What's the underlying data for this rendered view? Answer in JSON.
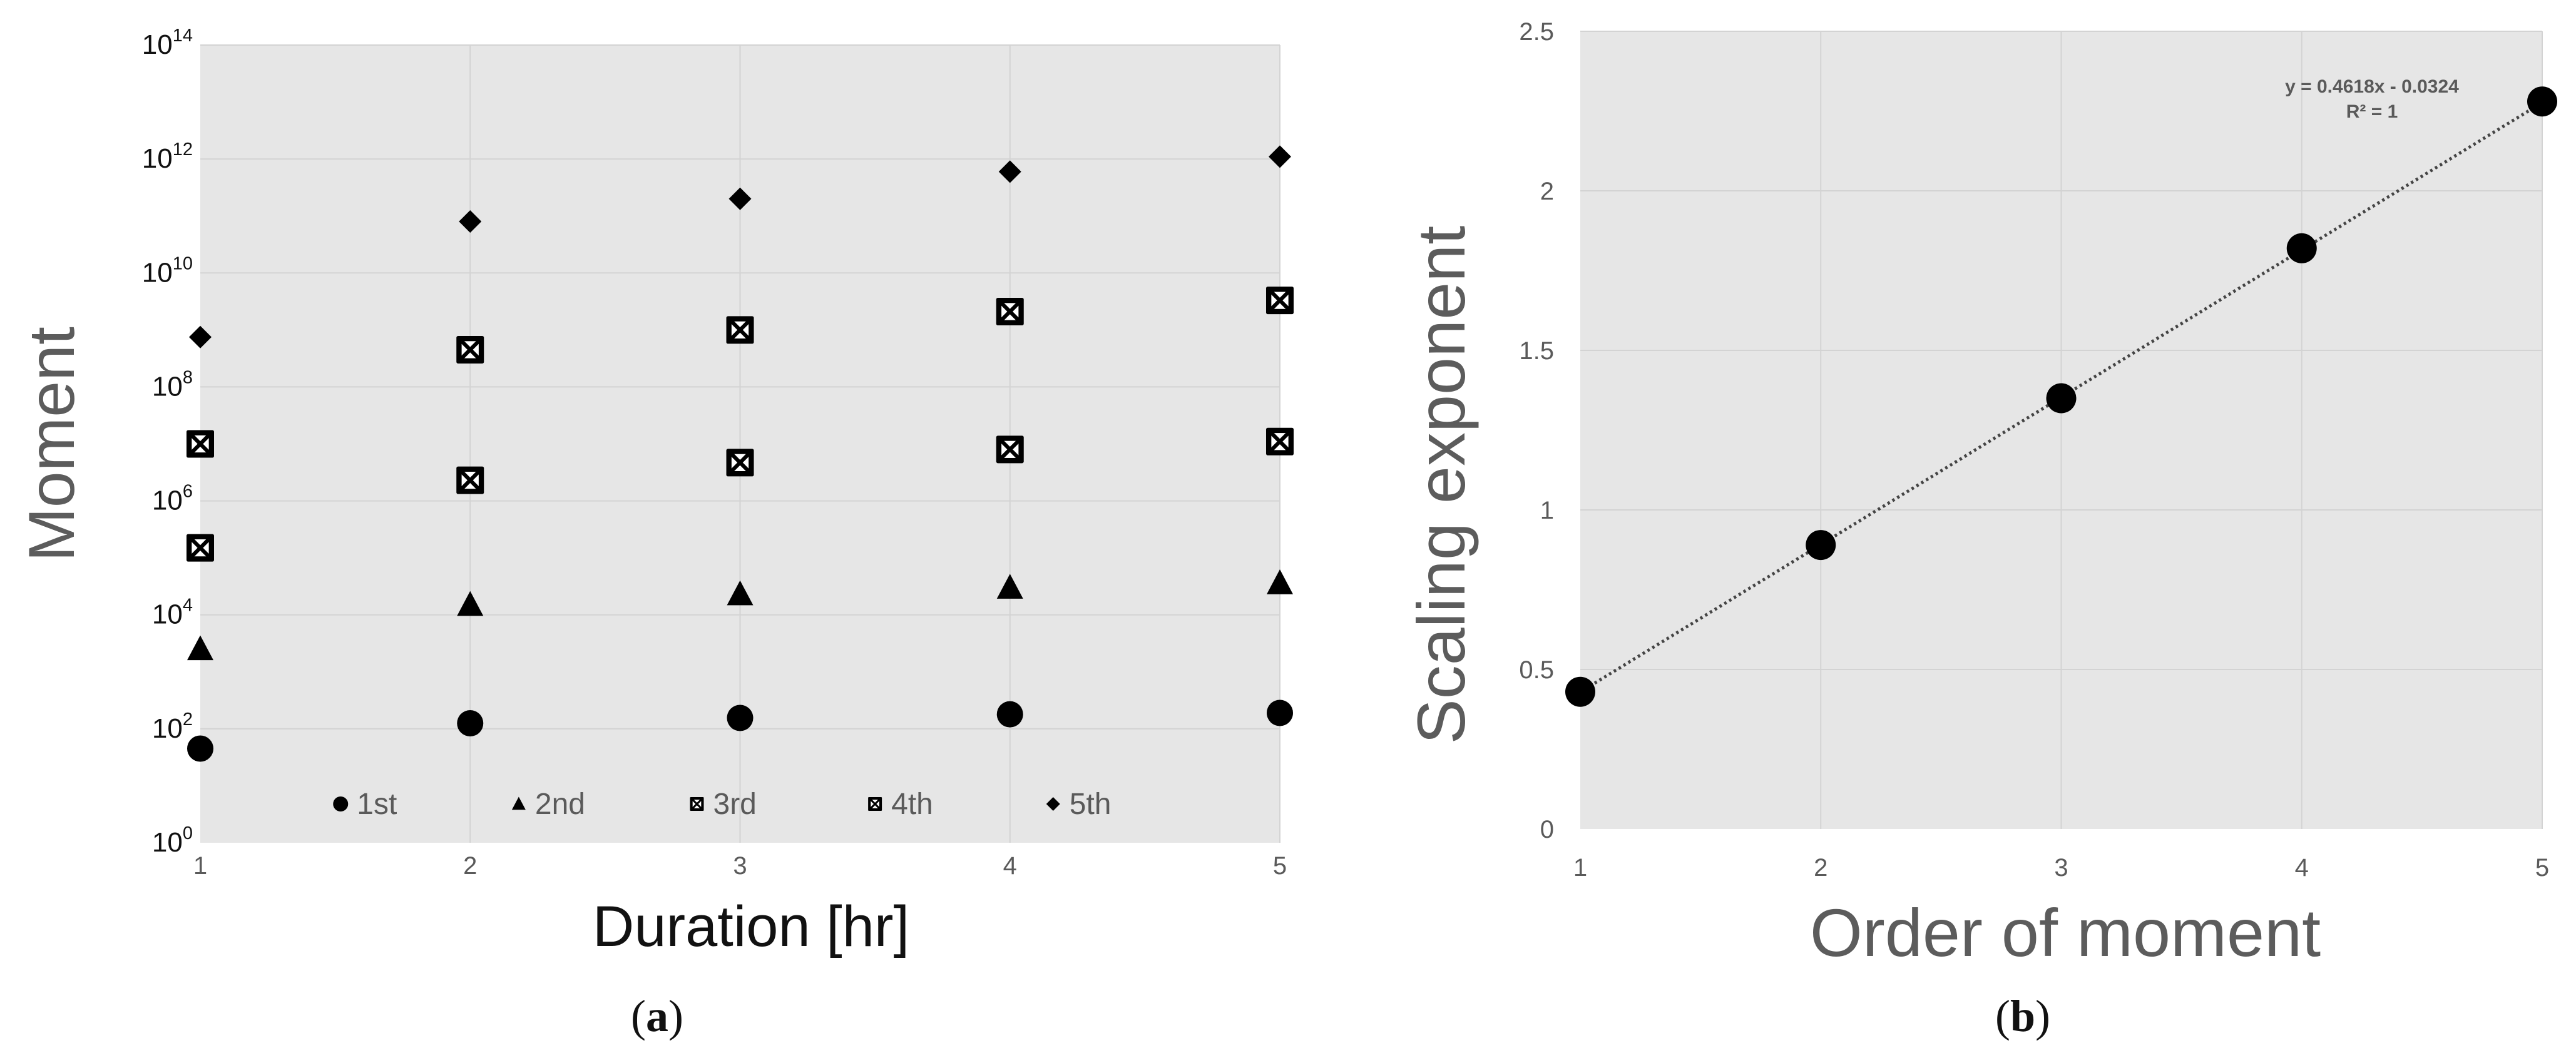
{
  "colors": {
    "plot_bg": "#e6e6e6",
    "grid": "#d3d3d3",
    "marker": "#000000",
    "text": "#5a5a5a"
  },
  "panel_a": {
    "label_paren_open": "(",
    "label": "a",
    "label_paren_close": ")"
  },
  "panel_b": {
    "label_paren_open": "(",
    "label": "b",
    "label_paren_close": ")"
  },
  "chart_data": [
    {
      "type": "scatter",
      "title": "",
      "xlabel": "Duration [hr]",
      "ylabel": "Moment",
      "yscale": "log",
      "xlim": [
        1,
        5
      ],
      "ylim": [
        1,
        100000000000000.0
      ],
      "xticks": [
        "1",
        "2",
        "3",
        "4",
        "5"
      ],
      "yticks": [
        {
          "base": "10",
          "exp": "0"
        },
        {
          "base": "10",
          "exp": "2"
        },
        {
          "base": "10",
          "exp": "4"
        },
        {
          "base": "10",
          "exp": "6"
        },
        {
          "base": "10",
          "exp": "8"
        },
        {
          "base": "10",
          "exp": "10"
        },
        {
          "base": "10",
          "exp": "12"
        },
        {
          "base": "10",
          "exp": "14"
        }
      ],
      "grid": true,
      "legend_position": "bottom",
      "x": [
        1,
        2,
        3,
        4,
        5
      ],
      "series": [
        {
          "name": "1st",
          "marker": "circle",
          "values": [
            45,
            125,
            155,
            180,
            190
          ]
        },
        {
          "name": "2nd",
          "marker": "triangle",
          "values": [
            2500,
            15000,
            23000,
            30000,
            36000
          ]
        },
        {
          "name": "3rd",
          "marker": "boxed-x",
          "values": [
            150000,
            2300000,
            4700000,
            8000000,
            11000000
          ]
        },
        {
          "name": "4th",
          "marker": "boxed-x",
          "values": [
            10000000,
            450000000,
            1000000000,
            2100000000,
            3300000000
          ]
        },
        {
          "name": "5th",
          "marker": "diamond",
          "values": [
            750000000,
            80000000000,
            200000000000,
            600000000000,
            1100000000000
          ]
        }
      ]
    },
    {
      "type": "scatter",
      "title": "",
      "xlabel": "Order of moment",
      "ylabel": "Scaling exponent",
      "xlim": [
        1,
        5
      ],
      "ylim": [
        0,
        2.5
      ],
      "xticks": [
        "1",
        "2",
        "3",
        "4",
        "5"
      ],
      "yticks": [
        "0",
        "0.5",
        "1",
        "1.5",
        "2",
        "2.5"
      ],
      "grid": true,
      "x": [
        1,
        2,
        3,
        4,
        5
      ],
      "series": [
        {
          "marker": "circle",
          "values": [
            0.43,
            0.89,
            1.35,
            1.82,
            2.28
          ]
        }
      ],
      "trendline": {
        "slope": 0.4618,
        "intercept": -0.0324,
        "style": "dotted",
        "equation": "y = 0.4618x - 0.0324",
        "r_squared": "R² = 1"
      }
    }
  ]
}
